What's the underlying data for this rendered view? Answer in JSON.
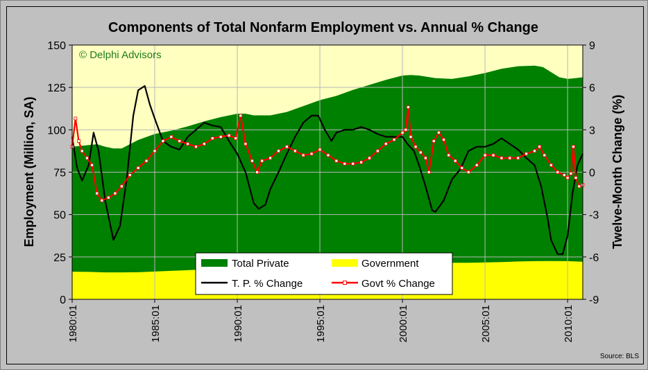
{
  "chart_data": {
    "type": "area",
    "title": "Components of Total Nonfarm Employment vs. Annual %  Change",
    "watermark": "© Delphi Advisors",
    "source": "Source: BLS",
    "ylabel_left": "Employment (Million, SA)",
    "ylabel_right": "Twelve-Month Change (%)",
    "ylim_left": [
      0,
      150
    ],
    "ylim_right": [
      -9,
      9
    ],
    "xlim": [
      1980.0,
      2010.92
    ],
    "y_ticks_left": [
      "0",
      "25",
      "50",
      "75",
      "100",
      "125",
      "150"
    ],
    "y_ticks_right": [
      "-9",
      "-6",
      "-3",
      "0",
      "3",
      "6",
      "9"
    ],
    "x_ticks": [
      {
        "value": 1980.0,
        "label": "1980:01"
      },
      {
        "value": 1985.0,
        "label": "1985:01"
      },
      {
        "value": 1990.0,
        "label": "1990:01"
      },
      {
        "value": 1995.0,
        "label": "1995:01"
      },
      {
        "value": 2000.0,
        "label": "2000:01"
      },
      {
        "value": 2005.0,
        "label": "2005:01"
      },
      {
        "value": 2010.0,
        "label": "2010:01"
      }
    ],
    "grid": true,
    "legend": {
      "placement": "bottom-center",
      "entries": [
        "Total Private",
        "Government",
        "T. P. % Change",
        "Govt % Change"
      ]
    },
    "colors": {
      "plot_bg": "#ffffc0",
      "total_private": "#008000",
      "government": "#ffff00",
      "tp_change": "#000000",
      "govt_change": "#ff0000",
      "govt_marker": "#ffffff"
    },
    "series": [
      {
        "name": "Government",
        "axis": "left",
        "kind": "area",
        "x": [
          1980.0,
          1981.0,
          1982.0,
          1983.0,
          1984.0,
          1985.0,
          1986.0,
          1987.0,
          1988.0,
          1989.0,
          1990.0,
          1991.0,
          1992.0,
          1993.0,
          1994.0,
          1995.0,
          1996.0,
          1997.0,
          1998.0,
          1999.0,
          2000.0,
          2001.0,
          2002.0,
          2003.0,
          2004.0,
          2005.0,
          2006.0,
          2007.0,
          2008.0,
          2009.0,
          2010.0,
          2010.92
        ],
        "values": [
          16.3,
          16.2,
          15.9,
          15.9,
          16.0,
          16.4,
          16.8,
          17.2,
          17.6,
          17.9,
          18.4,
          18.5,
          18.7,
          18.9,
          19.1,
          19.4,
          19.5,
          19.7,
          19.9,
          20.3,
          20.8,
          21.1,
          21.5,
          21.6,
          21.6,
          21.8,
          22.0,
          22.3,
          22.5,
          22.6,
          22.5,
          22.2
        ]
      },
      {
        "name": "Total Private",
        "axis": "left",
        "kind": "stacked-area-total",
        "x": [
          1980.0,
          1981.0,
          1981.5,
          1982.0,
          1982.5,
          1983.0,
          1984.0,
          1985.0,
          1986.0,
          1987.0,
          1988.0,
          1989.0,
          1990.0,
          1990.5,
          1991.0,
          1992.0,
          1993.0,
          1994.0,
          1995.0,
          1996.0,
          1997.0,
          1998.0,
          1999.0,
          2000.0,
          2000.5,
          2001.0,
          2002.0,
          2003.0,
          2004.0,
          2005.0,
          2006.0,
          2007.0,
          2008.0,
          2008.5,
          2009.0,
          2009.5,
          2010.0,
          2010.5,
          2010.92
        ],
        "values": [
          90.0,
          91.0,
          91.5,
          90.0,
          89.0,
          89.0,
          94.0,
          97.5,
          99.5,
          102.0,
          105.0,
          107.5,
          109.5,
          109.5,
          108.5,
          108.5,
          110.5,
          114.0,
          117.5,
          120.0,
          123.5,
          126.5,
          129.5,
          132.0,
          132.3,
          132.0,
          130.5,
          130.0,
          131.5,
          133.5,
          136.0,
          137.5,
          137.8,
          137.0,
          134.0,
          131.0,
          130.0,
          130.5,
          131.0
        ]
      },
      {
        "name": "T. P. % Change",
        "axis": "right",
        "kind": "line",
        "x": [
          1980.0,
          1980.3,
          1980.6,
          1981.0,
          1981.3,
          1981.6,
          1982.0,
          1982.5,
          1982.9,
          1983.3,
          1983.7,
          1984.0,
          1984.4,
          1984.7,
          1985.0,
          1985.5,
          1986.0,
          1986.5,
          1987.0,
          1987.5,
          1988.0,
          1988.5,
          1989.0,
          1989.5,
          1990.0,
          1990.5,
          1991.0,
          1991.3,
          1991.7,
          1992.0,
          1992.5,
          1993.0,
          1993.5,
          1994.0,
          1994.5,
          1994.9,
          1995.3,
          1995.7,
          1996.0,
          1996.5,
          1997.0,
          1997.5,
          1998.0,
          1998.5,
          1999.0,
          1999.5,
          2000.0,
          2000.3,
          2000.7,
          2001.0,
          2001.4,
          2001.8,
          2002.0,
          2002.5,
          2003.0,
          2003.5,
          2004.0,
          2004.5,
          2005.0,
          2005.5,
          2006.0,
          2006.5,
          2007.0,
          2007.5,
          2008.0,
          2008.4,
          2008.8,
          2009.0,
          2009.4,
          2009.7,
          2010.0,
          2010.3,
          2010.6,
          2010.92
        ],
        "values": [
          2.5,
          0.3,
          -0.6,
          0.5,
          2.8,
          1.5,
          -2.0,
          -4.8,
          -3.8,
          -0.5,
          4.0,
          5.8,
          6.1,
          4.8,
          3.8,
          2.2,
          1.8,
          1.6,
          2.5,
          3.0,
          3.5,
          3.3,
          3.2,
          2.2,
          1.3,
          0.0,
          -2.2,
          -2.6,
          -2.3,
          -1.2,
          0.0,
          1.3,
          2.5,
          3.5,
          4.0,
          4.0,
          3.0,
          2.2,
          2.8,
          3.0,
          3.0,
          3.2,
          3.0,
          2.7,
          2.5,
          2.5,
          2.5,
          2.0,
          1.5,
          0.5,
          -1.0,
          -2.7,
          -2.8,
          -2.0,
          -0.5,
          0.2,
          1.5,
          1.8,
          1.8,
          2.0,
          2.4,
          2.0,
          1.6,
          1.0,
          0.5,
          -1.0,
          -3.3,
          -4.8,
          -5.8,
          -5.8,
          -4.5,
          -1.5,
          0.5,
          1.3
        ]
      },
      {
        "name": "Govt % Change",
        "axis": "right",
        "kind": "line-markers",
        "x": [
          1980.0,
          1980.2,
          1980.4,
          1980.6,
          1980.9,
          1981.2,
          1981.5,
          1981.8,
          1982.2,
          1982.6,
          1983.0,
          1983.5,
          1984.0,
          1984.5,
          1985.0,
          1985.5,
          1986.0,
          1986.5,
          1987.0,
          1987.5,
          1988.0,
          1988.5,
          1989.0,
          1989.5,
          1989.9,
          1990.2,
          1990.5,
          1990.9,
          1991.2,
          1991.5,
          1992.0,
          1992.5,
          1993.0,
          1993.5,
          1994.0,
          1994.5,
          1995.0,
          1995.5,
          1996.0,
          1996.5,
          1997.0,
          1997.5,
          1998.0,
          1998.5,
          1999.0,
          1999.5,
          2000.0,
          2000.2,
          2000.35,
          2000.5,
          2000.8,
          2001.1,
          2001.4,
          2001.6,
          2001.9,
          2002.2,
          2002.5,
          2002.8,
          2003.2,
          2003.6,
          2004.0,
          2004.5,
          2005.0,
          2005.5,
          2006.0,
          2006.5,
          2007.0,
          2007.5,
          2008.0,
          2008.3,
          2008.6,
          2009.0,
          2009.4,
          2009.8,
          2010.0,
          2010.2,
          2010.35,
          2010.5,
          2010.7,
          2010.92
        ],
        "values": [
          1.8,
          3.8,
          2.2,
          1.5,
          1.0,
          0.5,
          -1.5,
          -2.0,
          -1.8,
          -1.5,
          -1.0,
          -0.2,
          0.3,
          0.8,
          1.5,
          2.2,
          2.5,
          2.2,
          2.0,
          1.8,
          2.0,
          2.4,
          2.5,
          2.6,
          2.4,
          4.0,
          2.0,
          0.8,
          0.0,
          0.8,
          1.0,
          1.5,
          1.8,
          1.5,
          1.2,
          1.3,
          1.6,
          1.2,
          0.8,
          0.6,
          0.6,
          0.7,
          1.0,
          1.5,
          2.0,
          2.3,
          2.8,
          3.0,
          4.6,
          2.5,
          1.8,
          1.4,
          1.0,
          0.0,
          2.2,
          2.8,
          2.3,
          1.2,
          0.8,
          0.3,
          0.0,
          0.5,
          1.2,
          1.2,
          1.0,
          1.0,
          1.0,
          1.3,
          1.5,
          1.8,
          1.2,
          0.5,
          0.0,
          -0.2,
          -0.4,
          -0.1,
          1.8,
          -0.4,
          -1.0,
          -0.9
        ]
      }
    ]
  }
}
